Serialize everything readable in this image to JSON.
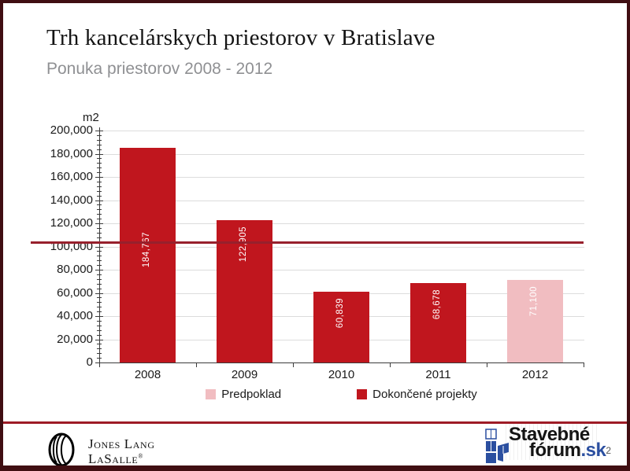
{
  "slide": {
    "title": "Trh kancelárskych priestorov v Bratislave",
    "subtitle": "Ponuka priestorov 2008 - 2012"
  },
  "chart_data": {
    "type": "bar",
    "title": "Ponuka priestorov 2008 - 2012",
    "ylabel": "m2",
    "xlabel": "",
    "ylim": [
      0,
      200000
    ],
    "ytick_step": 20000,
    "minor_tick_step": 4000,
    "grid": "horizontal",
    "legend_position": "bottom",
    "categories": [
      "2008",
      "2009",
      "2010",
      "2011",
      "2012"
    ],
    "bars": [
      {
        "category": "2008",
        "value": 184767,
        "label": "184,767",
        "series": "Dokončené projekty"
      },
      {
        "category": "2009",
        "value": 122905,
        "label": "122,905",
        "series": "Dokončené projekty"
      },
      {
        "category": "2010",
        "value": 60839,
        "label": "60,839",
        "series": "Dokončené projekty"
      },
      {
        "category": "2011",
        "value": 68678,
        "label": "68,678",
        "series": "Dokončené projekty"
      },
      {
        "category": "2012",
        "value": 71100,
        "label": "71,100",
        "series": "Predpoklad"
      }
    ],
    "series_colors": {
      "Dokončené projekty": "#C0161E",
      "Predpoklad": "#F1BDC1"
    },
    "legend": [
      {
        "label": "Predpoklad",
        "color": "#F1BDC1"
      },
      {
        "label": "Dokončené projekty",
        "color": "#C0161E"
      }
    ],
    "reference_line": {
      "value": 104000,
      "color": "#97202C"
    }
  },
  "footer": {
    "jll_logo": {
      "line1": "Jones Lang",
      "line2": "LaSalle",
      "registered": "®"
    },
    "stavebne_logo": {
      "word1": "Stavebné",
      "word2": "fórum",
      "tld": ".sk"
    },
    "page_number": "2"
  }
}
